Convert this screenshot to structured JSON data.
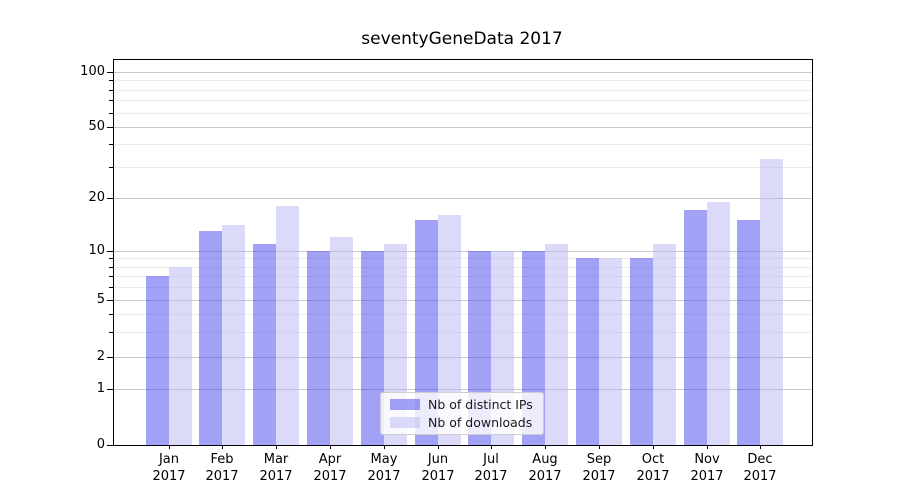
{
  "chart_data": {
    "type": "bar",
    "title": "seventyGeneData 2017",
    "categories": [
      "Jan",
      "Feb",
      "Mar",
      "Apr",
      "May",
      "Jun",
      "Jul",
      "Aug",
      "Sep",
      "Oct",
      "Nov",
      "Dec"
    ],
    "category_year": "2017",
    "series": [
      {
        "name": "Nb of distinct IPs",
        "color": "rgba(68,68,238,0.5)",
        "color_hex_on_white": "#a2a2f2",
        "values": [
          7,
          13,
          11,
          10,
          10,
          15,
          10,
          10,
          9,
          9,
          17,
          15
        ]
      },
      {
        "name": "Nb of downloads",
        "color": "rgba(184,184,244,0.5)",
        "color_hex_on_white": "#dcdcfa",
        "values": [
          8,
          14,
          18,
          12,
          11,
          16,
          10,
          11,
          9,
          11,
          19,
          33
        ]
      }
    ],
    "yaxis": {
      "scale": "log-like",
      "major_ticks": [
        0,
        1,
        2,
        5,
        10,
        20,
        50,
        100
      ],
      "minor_ticks": [
        3,
        4,
        6,
        7,
        8,
        9,
        30,
        40,
        60,
        70,
        80,
        90
      ]
    },
    "xaxis": {
      "tick_label_line2": "2017"
    },
    "legend": {
      "position": "lower-center"
    },
    "grid": true,
    "colors": {
      "major_grid": "#c9c9c9",
      "minor_grid": "#ececec",
      "axis": "#000000"
    }
  }
}
